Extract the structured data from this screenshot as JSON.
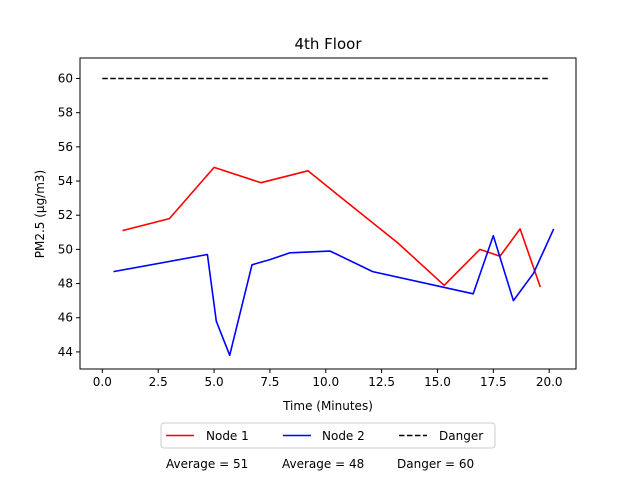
{
  "chart_data": {
    "type": "line",
    "title": "4th Floor",
    "xlabel": "Time (Minutes)",
    "ylabel": "PM2.5 (µg/m3)",
    "xlim": [
      -1.0,
      21.2
    ],
    "ylim": [
      43.0,
      61.2
    ],
    "xticks": [
      "0.0",
      "2.5",
      "5.0",
      "7.5",
      "10.0",
      "12.5",
      "15.0",
      "17.5",
      "20.0"
    ],
    "yticks": [
      "44",
      "46",
      "48",
      "50",
      "52",
      "54",
      "56",
      "58",
      "60"
    ],
    "grid": false,
    "legend_placement": "below plot, centered",
    "series": [
      {
        "name": "Node 1",
        "color": "#ff0000",
        "style": "solid",
        "x": [
          0.9,
          3.0,
          5.0,
          7.1,
          9.2,
          11.2,
          13.2,
          15.3,
          16.9,
          17.8,
          18.7,
          19.6
        ],
        "y": [
          51.1,
          51.8,
          54.8,
          53.9,
          54.6,
          52.5,
          50.4,
          47.9,
          50.0,
          49.6,
          51.2,
          47.8
        ]
      },
      {
        "name": "Node 2",
        "color": "#0000ff",
        "style": "solid",
        "x": [
          0.5,
          4.7,
          5.1,
          5.7,
          6.7,
          7.5,
          8.4,
          10.2,
          12.1,
          16.6,
          17.5,
          18.4,
          19.3,
          20.2
        ],
        "y": [
          48.7,
          49.7,
          45.8,
          43.8,
          49.1,
          49.4,
          49.8,
          49.9,
          48.7,
          47.4,
          50.8,
          47.0,
          48.6,
          51.2
        ]
      },
      {
        "name": "Danger",
        "color": "#000000",
        "style": "dashed",
        "x": [
          0.0,
          20.0
        ],
        "y": [
          60.0,
          60.0
        ]
      }
    ],
    "summary": {
      "node1": "Average = 51",
      "node2": "Average = 48",
      "danger": "Danger = 60"
    }
  }
}
